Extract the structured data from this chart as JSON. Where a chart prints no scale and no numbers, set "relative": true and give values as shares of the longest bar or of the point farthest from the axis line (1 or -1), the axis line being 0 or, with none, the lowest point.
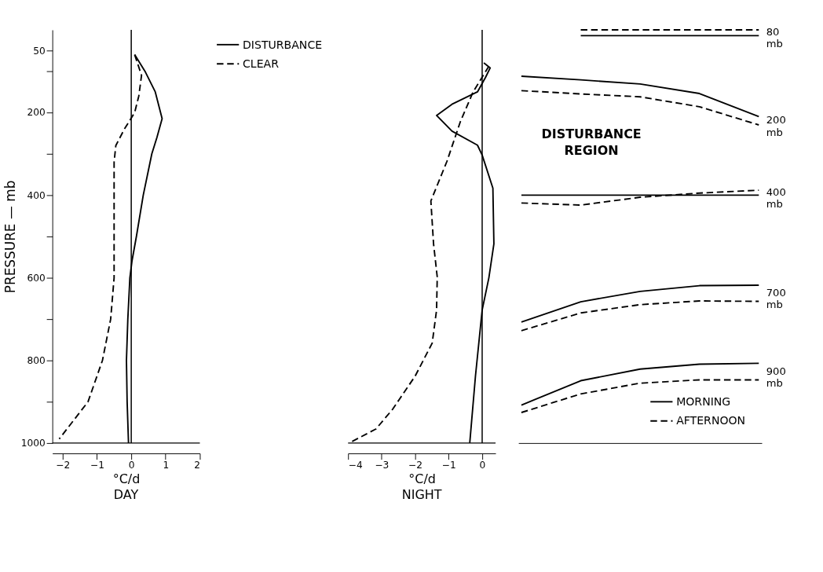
{
  "chart_data": [
    {
      "type": "line",
      "title": "DAY",
      "xlabel": "°C/d",
      "ylabel": "PRESSURE — mb",
      "xlim": [
        -2.3,
        2
      ],
      "xticks": [
        -2,
        -1,
        0,
        1,
        2
      ],
      "ylim": [
        1000,
        0
      ],
      "yticks": [
        50,
        {
          "value": 100,
          "label": null
        },
        200,
        {
          "value": 300,
          "label": null
        },
        400,
        {
          "value": 500,
          "label": null
        },
        600,
        {
          "value": 700,
          "label": null
        },
        800,
        {
          "value": 900,
          "label": null
        },
        1000
      ],
      "grid": false,
      "legend": "right",
      "ref_lines": [
        {
          "axis": "x",
          "value": 0
        }
      ],
      "series": [
        {
          "name": "DISTURBANCE",
          "color": "#000000",
          "line_style": "solid",
          "x": [
            0.1,
            0.4,
            0.7,
            0.9,
            0.75,
            0.6,
            0.35,
            0.15,
            0.02,
            -0.04,
            -0.1,
            -0.14,
            -0.12,
            -0.08
          ],
          "values": [
            60,
            100,
            150,
            215,
            260,
            300,
            400,
            500,
            560,
            600,
            700,
            800,
            900,
            1000
          ]
        },
        {
          "name": "CLEAR",
          "color": "#000000",
          "line_style": "dashed",
          "x": [
            0.1,
            0.3,
            0.22,
            0.1,
            -0.2,
            -0.45,
            -0.5,
            -0.5,
            -0.5,
            -0.5,
            -0.6,
            -0.84,
            -1.26,
            -2.1
          ],
          "values": [
            60,
            110,
            160,
            200,
            240,
            280,
            320,
            400,
            500,
            600,
            700,
            800,
            900,
            990
          ]
        }
      ]
    },
    {
      "type": "line",
      "title": "NIGHT",
      "xlabel": "°C/d",
      "xlim": [
        -4,
        0.4
      ],
      "xticks": [
        -4,
        -3,
        -2,
        -1,
        0
      ],
      "ylim": [
        1000,
        0
      ],
      "tick_labels": "x",
      "grid": false,
      "ref_lines": [
        {
          "axis": "x",
          "value": 0
        }
      ],
      "series": [
        {
          "color": "#000000",
          "line_style": "solid",
          "x": [
            0.05,
            0.24,
            0.1,
            -0.14,
            -0.9,
            -1.36,
            -0.9,
            -0.14,
            0,
            0.32,
            0.35,
            0.2,
            0,
            -0.2,
            -0.37
          ],
          "values": [
            80,
            92,
            115,
            150,
            180,
            207,
            245,
            279,
            303,
            383,
            518,
            600,
            678,
            838,
            1000
          ]
        },
        {
          "color": "#000000",
          "line_style": "dashed",
          "x": [
            0.2,
            -0.27,
            -0.65,
            -1.05,
            -1.53,
            -1.45,
            -1.34,
            -1.36,
            -1.49,
            -2.0,
            -2.67,
            -3.17,
            -3.97
          ],
          "values": [
            88,
            150,
            222,
            318,
            414,
            518,
            598,
            678,
            758,
            838,
            918,
            966,
            1000
          ]
        }
      ]
    },
    {
      "type": "line",
      "relative": true,
      "tick_labels": false,
      "grid": false,
      "legend": "bottom right",
      "categories": [
        null,
        null,
        null,
        null,
        null
      ],
      "annotations": [
        "DISTURBANCE REGION",
        "80 mb",
        "200 mb",
        "400 mb",
        "700 mb",
        "900 mb"
      ],
      "series": [
        {
          "color": "#000000",
          "line_style": "dashed",
          "values": [
            null,
            1.0,
            1.0,
            1.0,
            1.0
          ]
        },
        {
          "color": "#000000",
          "line_style": "solid",
          "values": [
            null,
            0.986,
            0.986,
            0.986,
            0.986
          ]
        },
        {
          "color": "#000000",
          "line_style": "solid",
          "values": [
            0.888,
            0.879,
            0.869,
            0.846,
            0.79
          ]
        },
        {
          "color": "#000000",
          "line_style": "dashed",
          "values": [
            0.853,
            0.845,
            0.838,
            0.814,
            0.77
          ]
        },
        {
          "color": "#000000",
          "line_style": "solid",
          "values": [
            0.6,
            0.6,
            0.6,
            0.6,
            0.6
          ]
        },
        {
          "color": "#000000",
          "line_style": "dashed",
          "values": [
            0.581,
            0.576,
            0.595,
            0.605,
            0.612
          ]
        },
        {
          "color": "#000000",
          "line_style": "solid",
          "values": [
            0.293,
            0.342,
            0.367,
            0.381,
            0.382
          ]
        },
        {
          "color": "#000000",
          "line_style": "dashed",
          "values": [
            0.272,
            0.315,
            0.335,
            0.344,
            0.343
          ]
        },
        {
          "name": "MORNING",
          "color": "#000000",
          "line_style": "solid",
          "values": [
            0.092,
            0.151,
            0.179,
            0.191,
            0.193
          ]
        },
        {
          "name": "AFTERNOON",
          "color": "#000000",
          "line_style": "dashed",
          "values": [
            0.074,
            0.119,
            0.145,
            0.153,
            0.153
          ]
        }
      ]
    }
  ]
}
